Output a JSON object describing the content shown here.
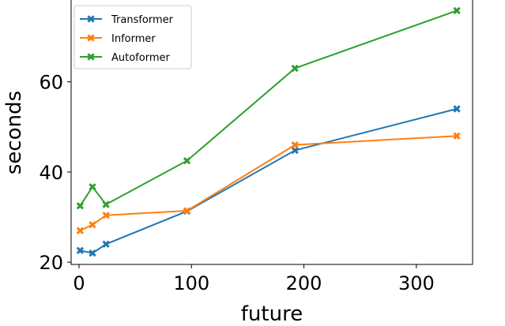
{
  "chart_data": {
    "type": "line",
    "title": "",
    "xlabel": "future",
    "ylabel": "seconds",
    "xlim": [
      -7,
      350
    ],
    "ylim": [
      19.5,
      78.5
    ],
    "xticks": [
      0,
      100,
      200,
      300
    ],
    "yticks": [
      20,
      40,
      60
    ],
    "grid": false,
    "legend_position": "top-left",
    "x": [
      1,
      12,
      24,
      96,
      192,
      336
    ],
    "series": [
      {
        "name": "Transformer",
        "color": "#1f77b4",
        "values": [
          22.6,
          22.0,
          24.0,
          31.3,
          44.8,
          54.0
        ]
      },
      {
        "name": "Informer",
        "color": "#ff7f0e",
        "values": [
          27.0,
          28.3,
          30.4,
          31.4,
          46.0,
          48.0
        ]
      },
      {
        "name": "Autoformer",
        "color": "#2ca02c",
        "values": [
          32.5,
          36.7,
          32.8,
          42.5,
          63.0,
          75.8
        ]
      }
    ]
  }
}
